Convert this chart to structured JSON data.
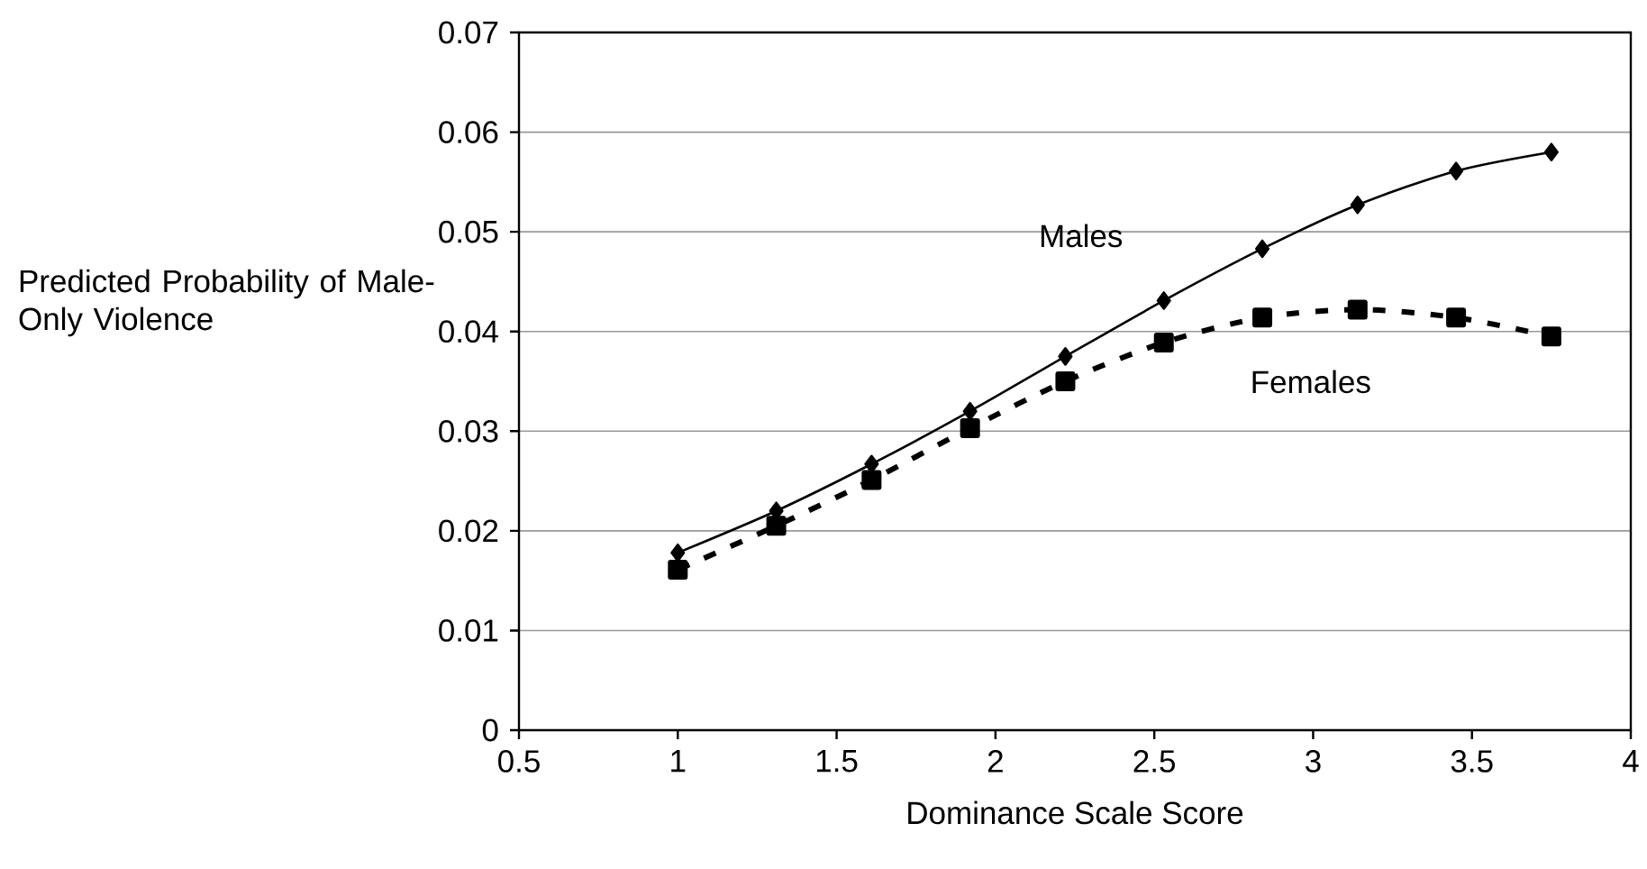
{
  "chart_data": {
    "type": "line",
    "ylabel": "Predicted Probability of Male-Only Violence",
    "xlabel": "Dominance Scale Score",
    "xlim": [
      0.5,
      4
    ],
    "xticks": [
      0.5,
      1,
      1.5,
      2,
      2.5,
      3,
      3.5,
      4
    ],
    "ylim": [
      0,
      0.07
    ],
    "yticks": [
      0,
      0.01,
      0.02,
      0.03,
      0.04,
      0.05,
      0.06,
      0.07
    ],
    "grid": "y",
    "x": [
      1.0,
      1.31,
      1.61,
      1.92,
      2.22,
      2.53,
      2.84,
      3.14,
      3.45,
      3.75
    ],
    "series": [
      {
        "name": "Males",
        "color": "#000000",
        "marker": "diamond",
        "line_style": "solid",
        "values": [
          0.0178,
          0.022,
          0.0267,
          0.032,
          0.0375,
          0.0431,
          0.0483,
          0.0527,
          0.0561,
          0.058
        ]
      },
      {
        "name": "Females",
        "color": "#000000",
        "marker": "square",
        "line_style": "dashed",
        "values": [
          0.0161,
          0.0205,
          0.0251,
          0.0303,
          0.035,
          0.0389,
          0.0414,
          0.0422,
          0.0414,
          0.0395
        ]
      }
    ]
  }
}
